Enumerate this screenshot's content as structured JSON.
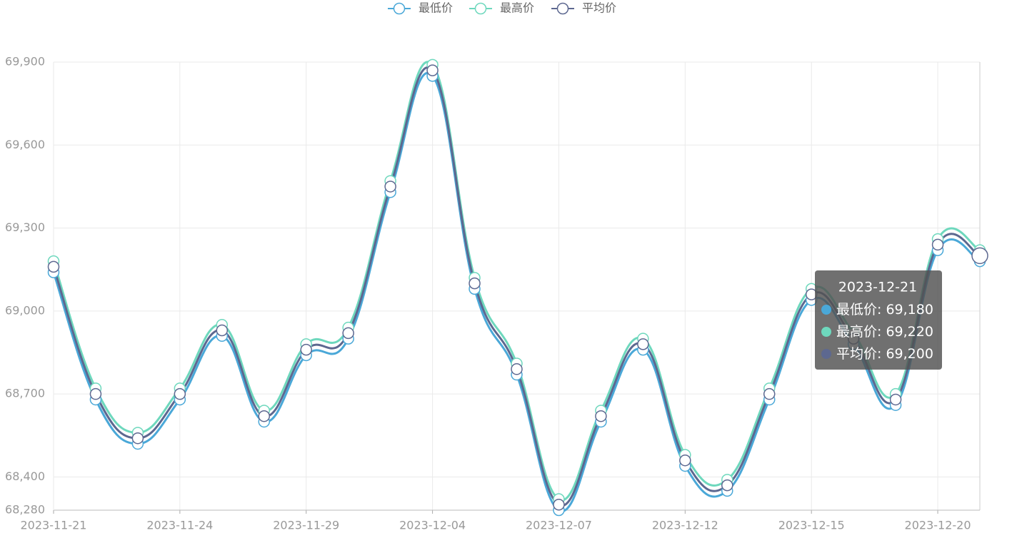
{
  "chart_data": {
    "type": "line",
    "categories": [
      "2023-11-21",
      null,
      null,
      "2023-11-24",
      null,
      null,
      "2023-11-29",
      null,
      null,
      "2023-12-04",
      null,
      null,
      "2023-12-07",
      null,
      null,
      "2023-12-12",
      null,
      null,
      "2023-12-15",
      null,
      null,
      "2023-12-20",
      "2023-12-21"
    ],
    "series": [
      {
        "name": "最低价",
        "color": "#4aa8d8",
        "values": [
          69140,
          68680,
          68520,
          68680,
          68910,
          68600,
          68840,
          68900,
          69430,
          69850,
          69080,
          68770,
          68280,
          68600,
          68860,
          68440,
          68350,
          68680,
          69040,
          68880,
          68660,
          69220,
          69180
        ]
      },
      {
        "name": "最高价",
        "color": "#6ed8bd",
        "values": [
          69180,
          68720,
          68560,
          68720,
          68950,
          68640,
          68880,
          68940,
          69470,
          69890,
          69120,
          68810,
          68320,
          68640,
          68900,
          68480,
          68390,
          68720,
          69080,
          68920,
          68700,
          69260,
          69220
        ]
      },
      {
        "name": "平均价",
        "color": "#5d6890",
        "values": [
          69160,
          68700,
          68540,
          68700,
          68930,
          68620,
          68860,
          68920,
          69450,
          69870,
          69100,
          68790,
          68300,
          68620,
          68880,
          68460,
          68370,
          68700,
          69060,
          68900,
          68680,
          69240,
          69200
        ]
      }
    ],
    "ylim": [
      68280,
      69900
    ],
    "yticks": [
      {
        "value": 68280,
        "label": "68,280"
      },
      {
        "value": 68400,
        "label": "68,400"
      },
      {
        "value": 68700,
        "label": "68,700"
      },
      {
        "value": 69000,
        "label": "69,000"
      },
      {
        "value": 69300,
        "label": "69,300"
      },
      {
        "value": 69600,
        "label": "69,600"
      },
      {
        "value": 69900,
        "label": "69,900"
      }
    ],
    "grid": true,
    "legend": "top",
    "smooth": true,
    "tooltip_labels": [
      "69,180",
      "69,220",
      "69,200"
    ]
  }
}
